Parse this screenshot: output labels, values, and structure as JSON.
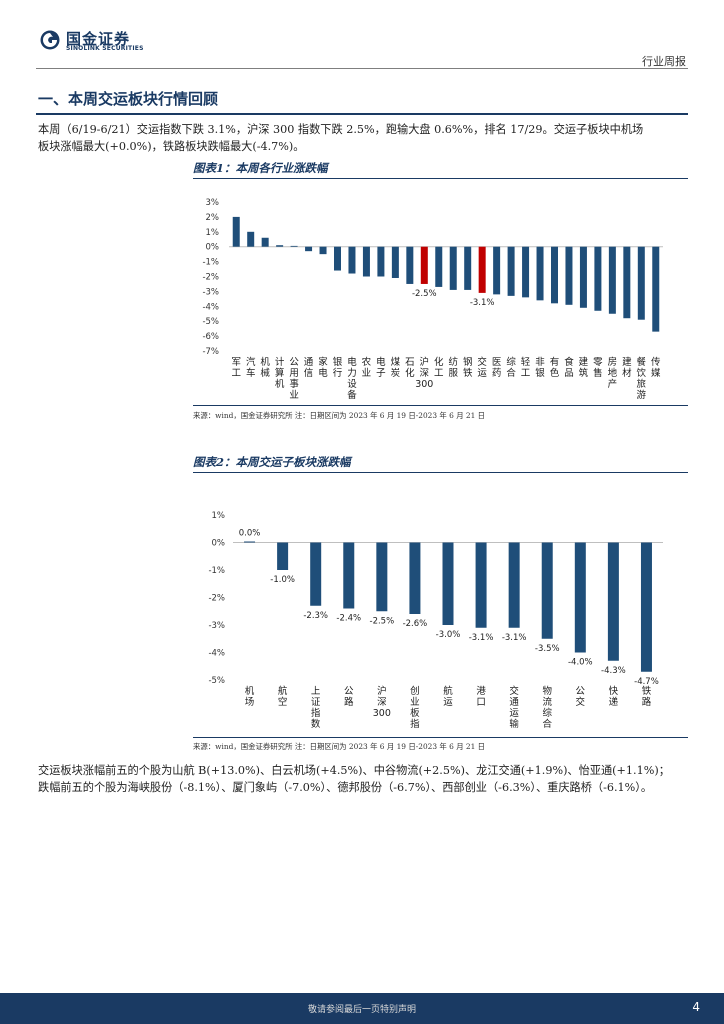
{
  "header": {
    "brand_cn": "国金证券",
    "brand_en": "SINOLINK SECURITIES",
    "report_type": "行业周报"
  },
  "section": {
    "title": "一、本周交运板块行情回顾"
  },
  "paragraphs": {
    "p1_line1": "本周（6/19-6/21）交运指数下跌 3.1%，沪深 300 指数下跌 2.5%，跑输大盘 0.6%%，排名 17/29。交运子板块中机场",
    "p1_line2": "板块涨幅最大(+0.0%)，铁路板块跌幅最大(-4.7%)。",
    "p2_line1": "交运板块涨幅前五的个股为山航 B(+13.0%)、白云机场(+4.5%)、中谷物流(+2.5%)、龙江交通(+1.9%)、怡亚通(+1.1%)；",
    "p2_line2": "跌幅前五的个股为海峡股份（-8.1%）、厦门象屿（-7.0%）、德邦股份（-6.7%）、西部创业（-6.3%）、重庆路桥（-6.1%）。"
  },
  "figure1": {
    "title": "图表1：本周各行业涨跌幅",
    "source": "来源：wind，国金证券研究所    注：日期区间为 2023 年 6 月 19 日-2023 年 6 月 21 日"
  },
  "figure2": {
    "title": "图表2：本周交运子板块涨跌幅",
    "source": "来源：wind，国金证券研究所    注：日期区间为 2023 年 6 月 19 日-2023 年 6 月 21 日"
  },
  "chart_data": [
    {
      "type": "bar",
      "title": "图表1：本周各行业涨跌幅",
      "categories": [
        "军工",
        "汽车",
        "机械",
        "计算机",
        "公用事业",
        "通信",
        "家电",
        "银行",
        "电力设备",
        "农业",
        "电子",
        "煤炭",
        "石化",
        "沪深300",
        "化工",
        "纺服",
        "钢铁",
        "交运",
        "医药",
        "综合",
        "轻工",
        "非银",
        "有色",
        "食品",
        "建筑",
        "零售",
        "房地产",
        "建材",
        "餐饮旅游",
        "传媒"
      ],
      "values": [
        2.0,
        1.0,
        0.6,
        0.1,
        0.0,
        -0.3,
        -0.5,
        -1.6,
        -1.8,
        -2.0,
        -2.0,
        -2.1,
        -2.5,
        -2.5,
        -2.7,
        -2.9,
        -2.9,
        -3.1,
        -3.2,
        -3.3,
        -3.4,
        -3.6,
        -3.8,
        -3.9,
        -4.1,
        -4.3,
        -4.5,
        -4.8,
        -4.9,
        -5.7
      ],
      "highlight": [
        "沪深300",
        "交运"
      ],
      "labeled": {
        "沪深300": "-2.5%",
        "交运": "-3.1%"
      },
      "ylim": [
        -7,
        3
      ],
      "ticks": [
        "3%",
        "2%",
        "1%",
        "0%",
        "-1%",
        "-2%",
        "-3%",
        "-4%",
        "-5%",
        "-6%",
        "-7%"
      ],
      "colors": {
        "bar": "#1f4e79",
        "highlight": "#c00000"
      }
    },
    {
      "type": "bar",
      "title": "图表2：本周交运子板块涨跌幅",
      "categories": [
        "机场",
        "航空",
        "上证指数",
        "公路",
        "沪深300",
        "创业板指",
        "航运",
        "港口",
        "交通运输",
        "物流综合",
        "公交",
        "快递",
        "铁路"
      ],
      "values": [
        0.0,
        -1.0,
        -2.3,
        -2.4,
        -2.5,
        -2.6,
        -3.0,
        -3.1,
        -3.1,
        -3.5,
        -4.0,
        -4.3,
        -4.7
      ],
      "data_labels": [
        "0.0%",
        "-1.0%",
        "-2.3%",
        "-2.4%",
        "-2.5%",
        "-2.6%",
        "-3.0%",
        "-3.1%",
        "-3.1%",
        "-3.5%",
        "-4.0%",
        "-4.3%",
        "-4.7%"
      ],
      "ylim": [
        -5,
        1
      ],
      "ticks": [
        "1%",
        "0%",
        "-1%",
        "-2%",
        "-3%",
        "-4%",
        "-5%"
      ],
      "colors": {
        "bar": "#1f4e79"
      }
    }
  ],
  "footer": {
    "note": "敬请参阅最后一页特别声明",
    "page": "4"
  }
}
